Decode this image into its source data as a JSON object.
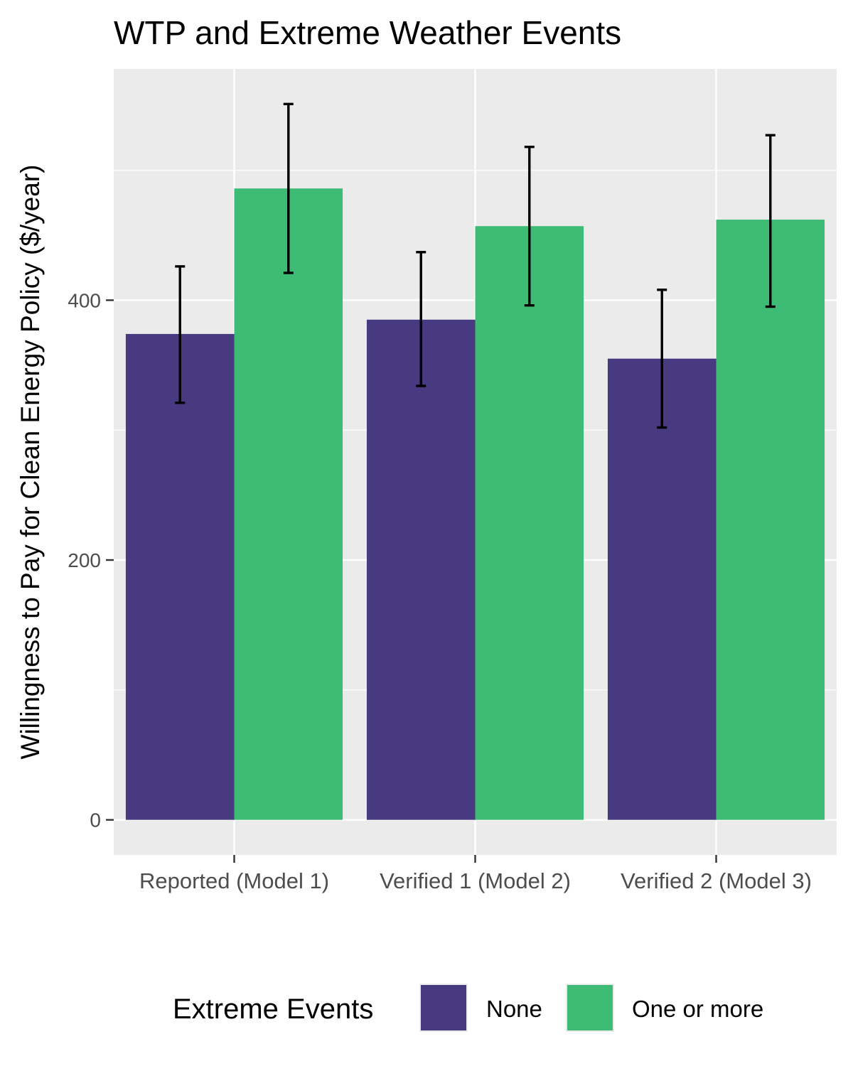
{
  "chart_data": {
    "type": "bar",
    "title": "WTP and Extreme Weather Events",
    "xlabel": "",
    "ylabel": "Willingness to Pay for Clean Energy Policy ($/year)",
    "categories": [
      "Reported (Model 1)",
      "Verified 1 (Model 2)",
      "Verified 2 (Model 3)"
    ],
    "ylim": [
      -27,
      578
    ],
    "yticks": [
      0,
      200,
      400
    ],
    "grid": true,
    "legend_position": "bottom",
    "legend_title": "Extreme Events",
    "series": [
      {
        "name": "None",
        "color": "#483A81",
        "values": [
          374,
          385,
          355
        ],
        "error_low": [
          321,
          334,
          302
        ],
        "error_high": [
          426,
          437,
          408
        ]
      },
      {
        "name": "One or more",
        "color": "#3EBC75",
        "values": [
          486,
          457,
          462
        ],
        "error_low": [
          421,
          396,
          395
        ],
        "error_high": [
          551,
          518,
          527
        ]
      }
    ]
  },
  "colors": {
    "panel": "#EBEBEB",
    "grid": "#FFFFFF",
    "tick_text": "#4D4D4D"
  }
}
